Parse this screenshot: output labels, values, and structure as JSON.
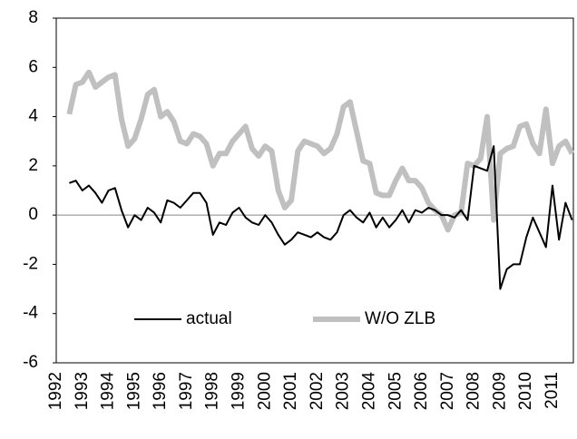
{
  "chart_data": {
    "type": "line",
    "x": [
      1992.5,
      1992.75,
      1993,
      1993.25,
      1993.5,
      1993.75,
      1994,
      1994.25,
      1994.5,
      1994.75,
      1995,
      1995.25,
      1995.5,
      1995.75,
      1996,
      1996.25,
      1996.5,
      1996.75,
      1997,
      1997.25,
      1997.5,
      1997.75,
      1998,
      1998.25,
      1998.5,
      1998.75,
      1999,
      1999.25,
      1999.5,
      1999.75,
      2000,
      2000.25,
      2000.5,
      2000.75,
      2001,
      2001.25,
      2001.5,
      2001.75,
      2002,
      2002.25,
      2002.5,
      2002.75,
      2003,
      2003.25,
      2003.5,
      2003.75,
      2004,
      2004.25,
      2004.5,
      2004.75,
      2005,
      2005.25,
      2005.5,
      2005.75,
      2006,
      2006.25,
      2006.5,
      2006.75,
      2007,
      2007.25,
      2007.5,
      2007.75,
      2008,
      2008.25,
      2008.5,
      2008.75,
      2009,
      2009.25,
      2009.5,
      2009.75,
      2010,
      2010.25,
      2010.5,
      2010.75,
      2011,
      2011.25,
      2011.5,
      2011.75
    ],
    "series": [
      {
        "name": "actual",
        "color": "#000000",
        "width": 2,
        "values": [
          1.3,
          1.4,
          1.0,
          1.2,
          0.9,
          0.5,
          1.0,
          1.1,
          0.2,
          -0.5,
          0.0,
          -0.2,
          0.3,
          0.1,
          -0.3,
          0.6,
          0.5,
          0.3,
          0.6,
          0.9,
          0.9,
          0.5,
          -0.8,
          -0.3,
          -0.4,
          0.1,
          0.3,
          -0.1,
          -0.3,
          -0.4,
          0.0,
          -0.3,
          -0.8,
          -1.2,
          -1.0,
          -0.7,
          -0.8,
          -0.9,
          -0.7,
          -0.9,
          -1.0,
          -0.7,
          0.0,
          0.2,
          -0.1,
          -0.3,
          0.1,
          -0.5,
          -0.1,
          -0.5,
          -0.2,
          0.2,
          -0.3,
          0.2,
          0.1,
          0.3,
          0.2,
          0.0,
          0.0,
          -0.1,
          0.2,
          -0.2,
          2.0,
          1.9,
          1.8,
          2.8,
          -3.0,
          -2.2,
          -2.0,
          -2.0,
          -0.9,
          -0.1,
          -0.7,
          -1.3,
          1.2,
          -1.0,
          0.5,
          -0.2
        ]
      },
      {
        "name": "W/O ZLB",
        "color": "#c0c0c0",
        "width": 6,
        "values": [
          4.1,
          5.3,
          5.4,
          5.8,
          5.2,
          5.4,
          5.6,
          5.7,
          3.9,
          2.8,
          3.1,
          3.9,
          4.9,
          5.1,
          4.0,
          4.2,
          3.8,
          3.0,
          2.9,
          3.3,
          3.2,
          2.9,
          2.0,
          2.5,
          2.5,
          3.0,
          3.3,
          3.6,
          2.7,
          2.4,
          2.8,
          2.6,
          1.0,
          0.3,
          0.6,
          2.6,
          3.0,
          2.9,
          2.8,
          2.5,
          2.7,
          3.3,
          4.4,
          4.6,
          3.4,
          2.2,
          2.1,
          0.9,
          0.8,
          0.8,
          1.4,
          1.9,
          1.4,
          1.4,
          1.1,
          0.5,
          0.2,
          0.0,
          -0.6,
          0.0,
          0.1,
          2.1,
          2.0,
          2.3,
          4.0,
          -0.2,
          2.5,
          2.7,
          2.8,
          3.6,
          3.7,
          2.9,
          2.5,
          4.3,
          2.1,
          2.8,
          3.0,
          2.5
        ]
      }
    ],
    "xlim": [
      1992,
      2011.8
    ],
    "xticks": [
      1992,
      1993,
      1994,
      1995,
      1996,
      1997,
      1998,
      1999,
      2000,
      2001,
      2002,
      2003,
      2004,
      2005,
      2006,
      2007,
      2008,
      2009,
      2010,
      2011
    ],
    "ylim": [
      -6,
      8
    ],
    "yticks": [
      -6,
      -4,
      -2,
      0,
      2,
      4,
      6,
      8
    ],
    "grid": false,
    "legend": "bottom"
  }
}
